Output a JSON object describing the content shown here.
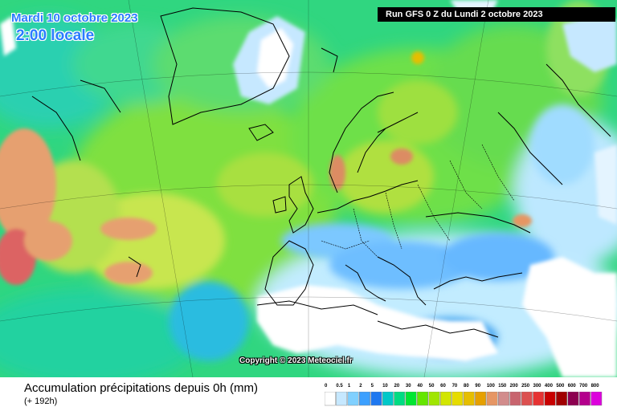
{
  "header": {
    "date": "Mardi 10 octobre 2023",
    "time": "2:00 locale",
    "run": "Run GFS 0 Z du Lundi 2 octobre 2023"
  },
  "footer": {
    "title": "Accumulation précipitations depuis 0h (mm)",
    "subtitle": "(+ 192h)",
    "copyright": "Copyright © 2023 Meteociel.fr"
  },
  "legend": {
    "labels": [
      "0",
      "0.5",
      "1",
      "2",
      "5",
      "10",
      "20",
      "30",
      "40",
      "50",
      "60",
      "70",
      "80",
      "90",
      "100",
      "150",
      "200",
      "250",
      "300",
      "400",
      "500",
      "600",
      "700",
      "800"
    ],
    "colors": [
      "#ffffff",
      "#c6e8ff",
      "#80d0ff",
      "#3ca0ff",
      "#1e78f0",
      "#00c8c8",
      "#00dc82",
      "#00e632",
      "#64e600",
      "#a0e600",
      "#d2e600",
      "#e6dc00",
      "#e6be00",
      "#e6a000",
      "#e69664",
      "#d28c8c",
      "#c8646e",
      "#dc5050",
      "#e63232",
      "#c80000",
      "#a00000",
      "#8c0050",
      "#b4008c",
      "#dc00dc"
    ]
  },
  "map": {
    "colors": {
      "ocean_base": "#1edc8c",
      "land_dry": "#ffffff",
      "light_rain": "#9ad8ff",
      "moderate": "#3cb4ff",
      "heavy_green": "#5ae650",
      "yellow": "#c8e650",
      "orange": "#e6a070",
      "red": "#dc6464",
      "coast": "#000000"
    }
  }
}
